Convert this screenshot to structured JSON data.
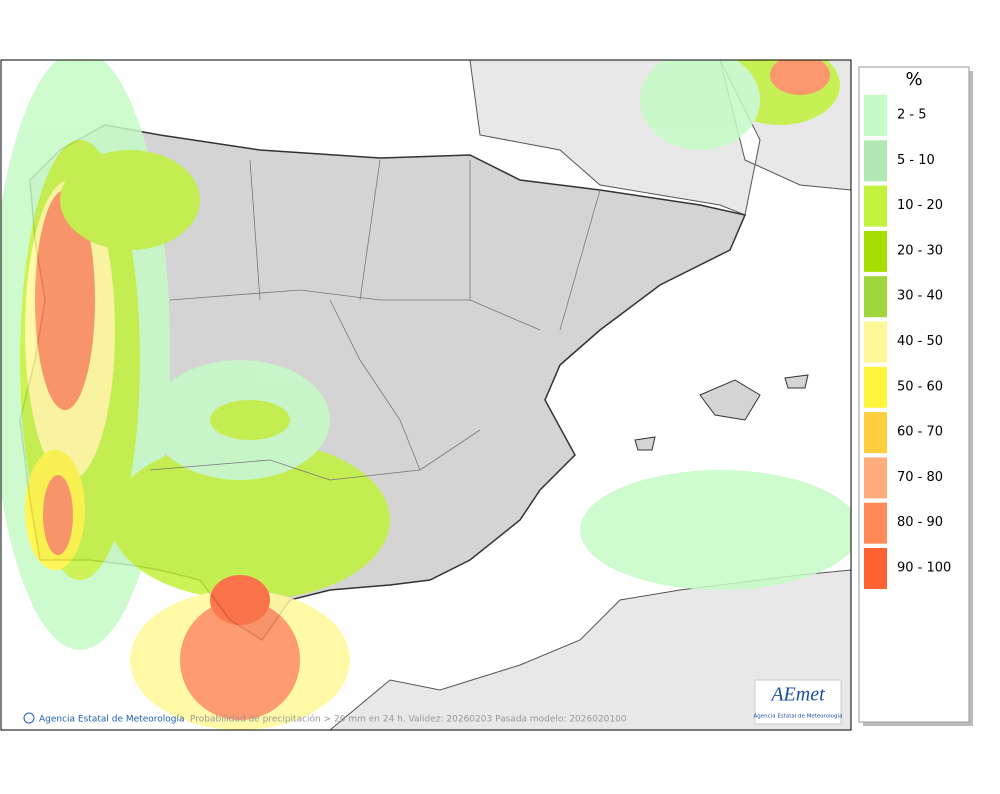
{
  "map": {
    "caption": "Probabilidad de precipitación > 20 mm en 24 h. Validez: 20260203 Pasada modelo: 2026020100",
    "credit": "Agencia Estatal de Meteorología",
    "logo": {
      "name": "AEmet",
      "subtitle": "Agencia Estatal de Meteorología"
    },
    "legend": {
      "title": "%",
      "items": [
        {
          "label": "2 - 5",
          "color": "#c6fbc6"
        },
        {
          "label": "5 - 10",
          "color": "#b2e9b2"
        },
        {
          "label": "10 - 20",
          "color": "#c2f23c"
        },
        {
          "label": "20 - 30",
          "color": "#a6de00"
        },
        {
          "label": "30 - 40",
          "color": "#9fd63c"
        },
        {
          "label": "40 - 50",
          "color": "#fff899"
        },
        {
          "label": "50 - 60",
          "color": "#fff53a"
        },
        {
          "label": "60 - 70",
          "color": "#ffce3e"
        },
        {
          "label": "70 - 80",
          "color": "#ffad7c"
        },
        {
          "label": "80 - 90",
          "color": "#ff8a58"
        },
        {
          "label": "90 - 100",
          "color": "#ff6232"
        }
      ]
    }
  }
}
